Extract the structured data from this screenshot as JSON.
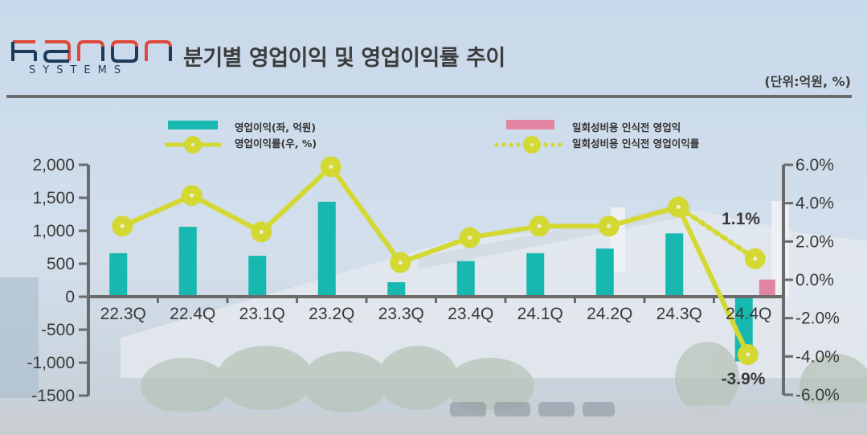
{
  "header": {
    "logo_word": "hanon",
    "logo_sub": "SYSTEMS",
    "title": "분기별 영업이익 및 영업이익률 추이",
    "unit": "(단위:억원, %)"
  },
  "legend": [
    {
      "label": "영업이익(좌, 억원)",
      "type": "bar",
      "color": "#17b8b0"
    },
    {
      "label": "영업이익률(우, %)",
      "type": "line",
      "color": "#d4d832"
    },
    {
      "label": "일회성비용 인식전 영업익",
      "type": "bar",
      "color": "#e284a2"
    },
    {
      "label": "일회성비용 인식전 영업이익률",
      "type": "dotted-line",
      "color": "#d4d832"
    }
  ],
  "colors": {
    "bar": "#17b8b0",
    "line": "#d4d832",
    "adjusted_bar": "#e284a2",
    "axis": "#6b6b6b",
    "text": "#3a3a3a"
  },
  "chart_data": {
    "type": "bar",
    "title": "분기별 영업이익 및 영업이익률 추이",
    "unit": "(단위:억원, %)",
    "categories": [
      "22.3Q",
      "22.4Q",
      "23.1Q",
      "23.2Q",
      "23.3Q",
      "23.4Q",
      "24.1Q",
      "24.2Q",
      "24.3Q",
      "24.4Q"
    ],
    "series": [
      {
        "name": "영업이익(좌, 억원)",
        "type": "bar",
        "axis": "left",
        "values": [
          660,
          1060,
          620,
          1440,
          220,
          540,
          660,
          730,
          960,
          -980
        ]
      },
      {
        "name": "영업이익률(우, %)",
        "type": "line",
        "axis": "right",
        "values": [
          2.8,
          4.4,
          2.5,
          5.9,
          0.9,
          2.2,
          2.8,
          2.8,
          3.8,
          -3.9
        ]
      },
      {
        "name": "일회성비용 인식전 영업익",
        "type": "bar",
        "axis": "left",
        "values": [
          null,
          null,
          null,
          null,
          null,
          null,
          null,
          null,
          null,
          260
        ]
      },
      {
        "name": "일회성비용 인식전 영업이익률",
        "type": "dotted-line",
        "axis": "right",
        "values": [
          null,
          null,
          null,
          null,
          null,
          null,
          null,
          null,
          3.8,
          1.1
        ]
      }
    ],
    "annotations": [
      {
        "category": "24.4Q",
        "text": "1.1%"
      },
      {
        "category": "24.4Q",
        "text": "-3.9%"
      }
    ],
    "left_axis": {
      "ylim": [
        -1500,
        2000
      ],
      "ticks": [
        "2,000",
        "1,500",
        "1,000",
        "500",
        "0",
        "-500",
        "-1,000",
        "-1500"
      ]
    },
    "right_axis": {
      "ylim": [
        -6.0,
        6.0
      ],
      "ticks": [
        "6.0%",
        "4.0%",
        "2.0%",
        "0.0%",
        "-2.0%",
        "-4.0%",
        "-6.0%"
      ]
    },
    "xlabel": "",
    "ylabel": "",
    "grid": false,
    "legend_position": "top"
  }
}
